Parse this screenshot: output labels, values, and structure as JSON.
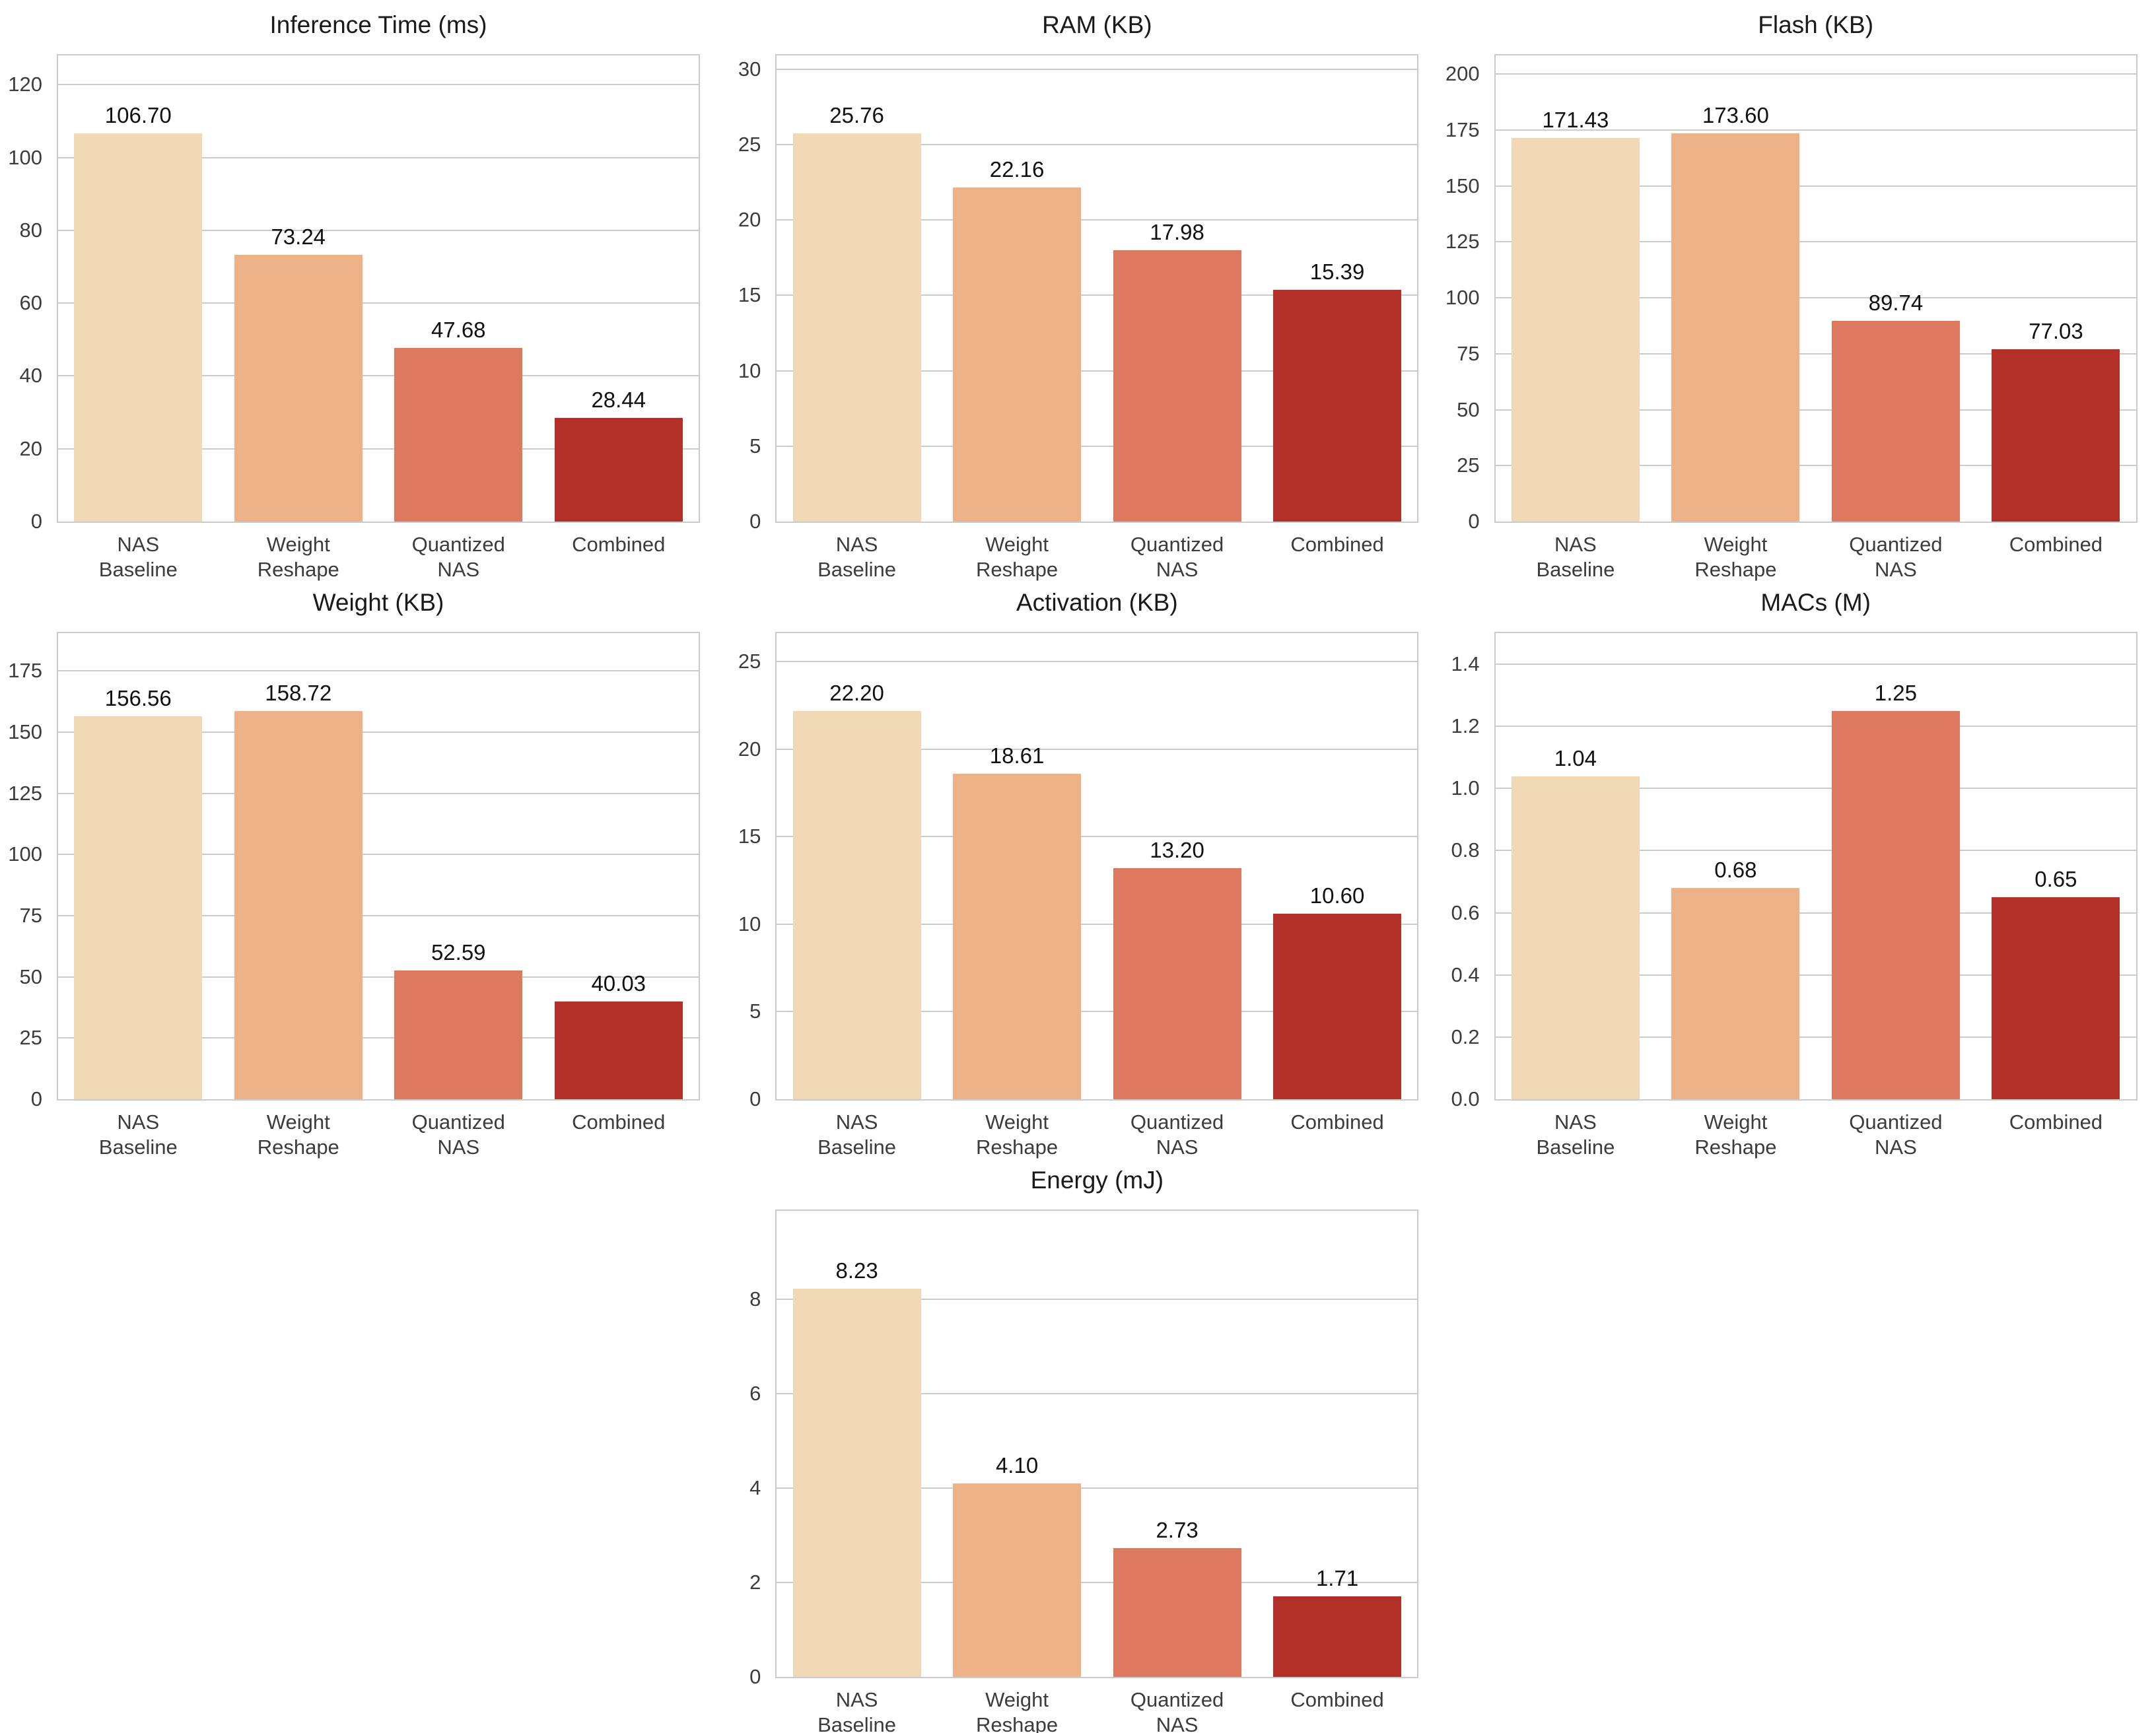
{
  "figure": {
    "background": "#ffffff",
    "grid_rows": 3,
    "grid_cols": 3
  },
  "palette": {
    "bar_colors": [
      "#F2D9B5",
      "#EDB287",
      "#DC795E",
      "#B23028"
    ],
    "grid_color": "#cbcbcb",
    "spine_color": "#cbcbcb",
    "tick_label_color": "#3c3c3c",
    "value_label_color": "#111111",
    "title_color": "#1a1a1a"
  },
  "chart_data": [
    {
      "type": "bar",
      "row": 0,
      "col": 0,
      "title": "Inference Time (ms)",
      "categories": [
        "NAS\nBaseline",
        "Weight\nReshape",
        "Quantized\nNAS",
        "Combined"
      ],
      "values": [
        106.7,
        73.24,
        47.68,
        28.44
      ],
      "bar_labels": [
        "106.70",
        "73.24",
        "47.68",
        "28.44"
      ],
      "ylim": [
        0,
        128.04
      ],
      "yticks": [
        0,
        20,
        40,
        60,
        80,
        100,
        120
      ],
      "ytick_labels": [
        "0",
        "20",
        "40",
        "60",
        "80",
        "100",
        "120"
      ],
      "grid": true,
      "legend": false,
      "xlabel": "",
      "ylabel": ""
    },
    {
      "type": "bar",
      "row": 0,
      "col": 1,
      "title": "RAM (KB)",
      "categories": [
        "NAS\nBaseline",
        "Weight\nReshape",
        "Quantized\nNAS",
        "Combined"
      ],
      "values": [
        25.76,
        22.16,
        17.98,
        15.39
      ],
      "bar_labels": [
        "25.76",
        "22.16",
        "17.98",
        "15.39"
      ],
      "ylim": [
        0,
        30.912
      ],
      "yticks": [
        0,
        5,
        10,
        15,
        20,
        25,
        30
      ],
      "ytick_labels": [
        "0",
        "5",
        "10",
        "15",
        "20",
        "25",
        "30"
      ],
      "grid": true,
      "legend": false,
      "xlabel": "",
      "ylabel": ""
    },
    {
      "type": "bar",
      "row": 0,
      "col": 2,
      "title": "Flash (KB)",
      "categories": [
        "NAS\nBaseline",
        "Weight\nReshape",
        "Quantized\nNAS",
        "Combined"
      ],
      "values": [
        171.43,
        173.6,
        89.74,
        77.03
      ],
      "bar_labels": [
        "171.43",
        "173.60",
        "89.74",
        "77.03"
      ],
      "ylim": [
        0,
        208.32
      ],
      "yticks": [
        0,
        25,
        50,
        75,
        100,
        125,
        150,
        175,
        200
      ],
      "ytick_labels": [
        "0",
        "25",
        "50",
        "75",
        "100",
        "125",
        "150",
        "175",
        "200"
      ],
      "grid": true,
      "legend": false,
      "xlabel": "",
      "ylabel": ""
    },
    {
      "type": "bar",
      "row": 1,
      "col": 0,
      "title": "Weight (KB)",
      "categories": [
        "NAS\nBaseline",
        "Weight\nReshape",
        "Quantized\nNAS",
        "Combined"
      ],
      "values": [
        156.56,
        158.72,
        52.59,
        40.03
      ],
      "bar_labels": [
        "156.56",
        "158.72",
        "52.59",
        "40.03"
      ],
      "ylim": [
        0,
        190.464
      ],
      "yticks": [
        0,
        25,
        50,
        75,
        100,
        125,
        150,
        175
      ],
      "ytick_labels": [
        "0",
        "25",
        "50",
        "75",
        "100",
        "125",
        "150",
        "175"
      ],
      "grid": true,
      "legend": false,
      "xlabel": "",
      "ylabel": ""
    },
    {
      "type": "bar",
      "row": 1,
      "col": 1,
      "title": "Activation (KB)",
      "categories": [
        "NAS\nBaseline",
        "Weight\nReshape",
        "Quantized\nNAS",
        "Combined"
      ],
      "values": [
        22.2,
        18.61,
        13.2,
        10.6
      ],
      "bar_labels": [
        "22.20",
        "18.61",
        "13.20",
        "10.60"
      ],
      "ylim": [
        0,
        26.64
      ],
      "yticks": [
        0,
        5,
        10,
        15,
        20,
        25
      ],
      "ytick_labels": [
        "0",
        "5",
        "10",
        "15",
        "20",
        "25"
      ],
      "grid": true,
      "legend": false,
      "xlabel": "",
      "ylabel": ""
    },
    {
      "type": "bar",
      "row": 1,
      "col": 2,
      "title": "MACs (M)",
      "categories": [
        "NAS\nBaseline",
        "Weight\nReshape",
        "Quantized\nNAS",
        "Combined"
      ],
      "values": [
        1.04,
        0.68,
        1.25,
        0.65
      ],
      "bar_labels": [
        "1.04",
        "0.68",
        "1.25",
        "0.65"
      ],
      "ylim": [
        0,
        1.5
      ],
      "yticks": [
        0.0,
        0.2,
        0.4,
        0.6,
        0.8,
        1.0,
        1.2,
        1.4
      ],
      "ytick_labels": [
        "0.0",
        "0.2",
        "0.4",
        "0.6",
        "0.8",
        "1.0",
        "1.2",
        "1.4"
      ],
      "grid": true,
      "legend": false,
      "xlabel": "",
      "ylabel": ""
    },
    {
      "type": "bar",
      "row": 2,
      "col": 1,
      "title": "Energy (mJ)",
      "categories": [
        "NAS\nBaseline",
        "Weight\nReshape",
        "Quantized\nNAS",
        "Combined"
      ],
      "values": [
        8.23,
        4.1,
        2.73,
        1.71
      ],
      "bar_labels": [
        "8.23",
        "4.10",
        "2.73",
        "1.71"
      ],
      "ylim": [
        0,
        9.876
      ],
      "yticks": [
        0,
        2,
        4,
        6,
        8
      ],
      "ytick_labels": [
        "0",
        "2",
        "4",
        "6",
        "8"
      ],
      "grid": true,
      "legend": false,
      "xlabel": "",
      "ylabel": ""
    }
  ]
}
